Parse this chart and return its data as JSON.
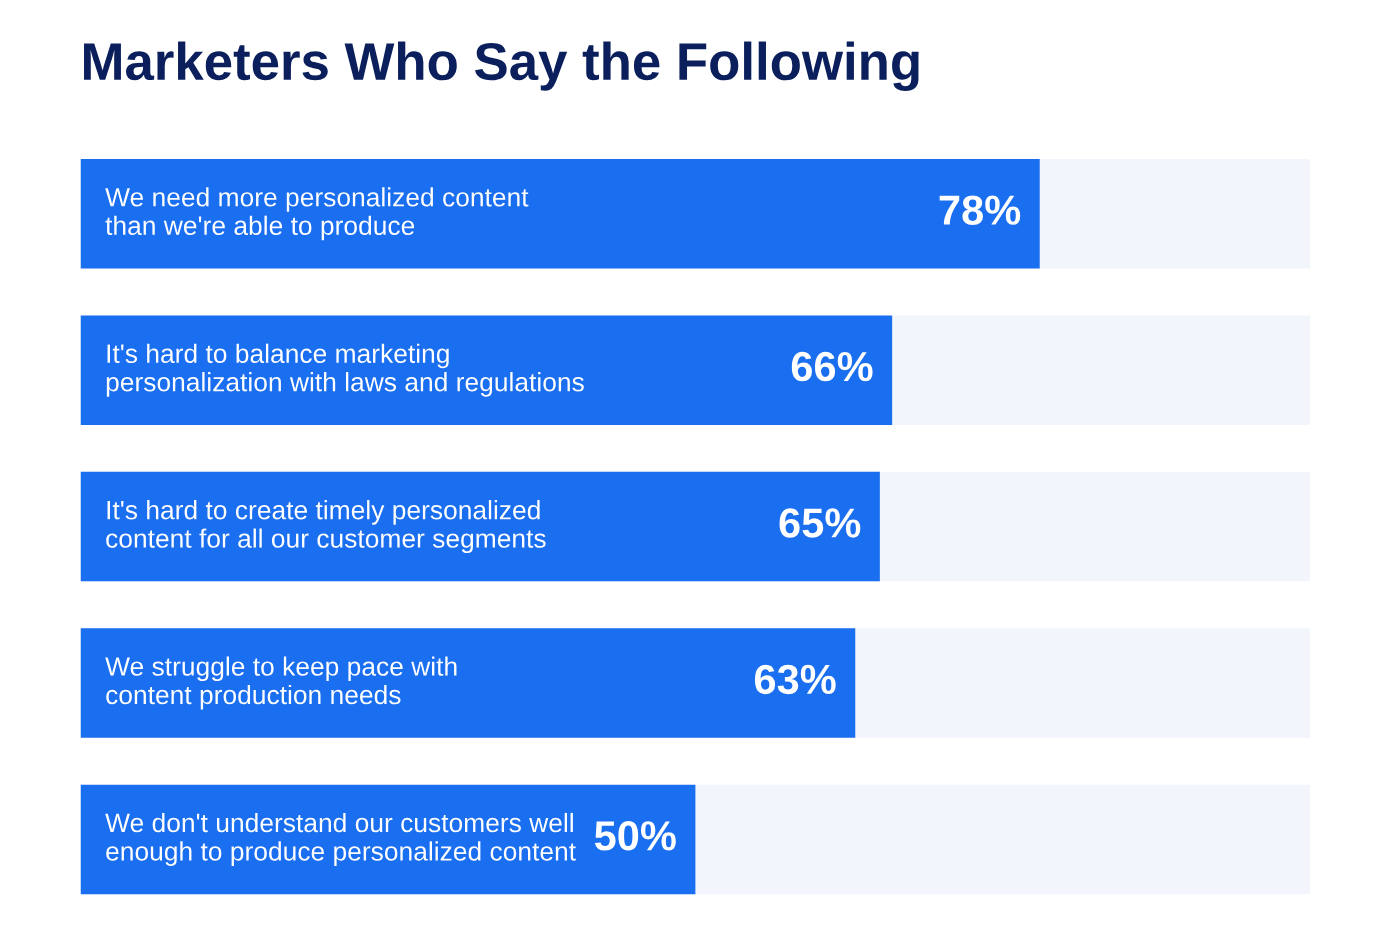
{
  "chart_data": {
    "type": "bar",
    "orientation": "horizontal",
    "title": "Marketers Who Say the Following",
    "categories": [
      "We need more personalized content\nthan we're able to produce",
      "It's hard to balance marketing\npersonalization with laws and regulations",
      "It's hard to create timely personalized\ncontent for all our customer segments",
      "We struggle to keep pace with\ncontent production needs",
      "We don't understand our customers well\nenough to produce personalized content"
    ],
    "values": [
      78,
      66,
      65,
      63,
      50
    ],
    "value_labels": [
      "78%",
      "66%",
      "65%",
      "63%",
      "50%"
    ],
    "color": "#1a6ef0",
    "xlim": [
      0,
      100
    ],
    "tick_labels": false
  }
}
